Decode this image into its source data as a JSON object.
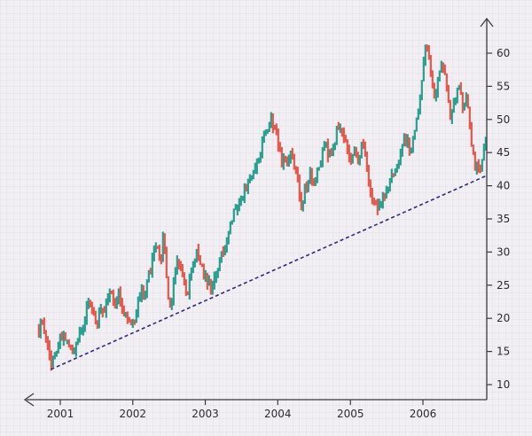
{
  "chart_data": {
    "type": "ohlc",
    "title": "",
    "xlabel": "",
    "ylabel": "",
    "x_ticks": [
      "2001",
      "2002",
      "2003",
      "2004",
      "2005",
      "2006"
    ],
    "y_ticks": [
      10,
      15,
      20,
      25,
      30,
      35,
      40,
      45,
      50,
      55,
      60
    ],
    "x_range": [
      "2000-09-01",
      "2006-12-15"
    ],
    "y_range": [
      8,
      64
    ],
    "y_axis_side": "right",
    "x_axis_direction": "reversed (arrow pointing left)",
    "grid": true,
    "colors": {
      "up": "#2a9d8f",
      "down": "#e4574b",
      "trendline": "#2d2c6e",
      "axis": "#3a3a44",
      "grid": "#dcdae2",
      "background": "#f1eff3"
    },
    "price_path": [
      [
        "2000-09-15",
        18.5
      ],
      [
        "2000-10-05",
        19.5
      ],
      [
        "2000-10-25",
        16.0
      ],
      [
        "2000-11-15",
        13.5
      ],
      [
        "2000-12-05",
        14.0
      ],
      [
        "2001-01-01",
        17.0
      ],
      [
        "2001-01-20",
        17.5
      ],
      [
        "2001-02-15",
        15.0
      ],
      [
        "2001-03-05",
        14.5
      ],
      [
        "2001-04-01",
        17.0
      ],
      [
        "2001-05-01",
        18.0
      ],
      [
        "2001-05-20",
        23.5
      ],
      [
        "2001-06-10",
        22.0
      ],
      [
        "2001-07-01",
        19.5
      ],
      [
        "2001-07-20",
        21.0
      ],
      [
        "2001-08-15",
        21.5
      ],
      [
        "2001-09-10",
        24.5
      ],
      [
        "2001-10-01",
        21.0
      ],
      [
        "2001-10-20",
        24.5
      ],
      [
        "2001-11-10",
        21.5
      ],
      [
        "2001-12-01",
        20.0
      ],
      [
        "2002-01-01",
        19.0
      ],
      [
        "2002-01-20",
        21.0
      ],
      [
        "2002-02-10",
        24.5
      ],
      [
        "2002-03-01",
        23.0
      ],
      [
        "2002-03-20",
        26.0
      ],
      [
        "2002-04-10",
        29.0
      ],
      [
        "2002-05-01",
        31.0
      ],
      [
        "2002-05-20",
        28.0
      ],
      [
        "2002-06-05",
        32.5
      ],
      [
        "2002-06-20",
        26.0
      ],
      [
        "2002-07-10",
        21.0
      ],
      [
        "2002-08-01",
        27.5
      ],
      [
        "2002-08-20",
        29.0
      ],
      [
        "2002-09-10",
        26.0
      ],
      [
        "2002-10-01",
        23.0
      ],
      [
        "2002-10-25",
        28.0
      ],
      [
        "2002-11-15",
        30.0
      ],
      [
        "2002-12-10",
        28.5
      ],
      [
        "2003-01-01",
        26.0
      ],
      [
        "2003-02-01",
        24.5
      ],
      [
        "2003-03-01",
        27.0
      ],
      [
        "2003-03-25",
        30.0
      ],
      [
        "2003-04-15",
        31.0
      ],
      [
        "2003-05-10",
        35.0
      ],
      [
        "2003-06-01",
        36.0
      ],
      [
        "2003-07-01",
        38.5
      ],
      [
        "2003-08-01",
        40.0
      ],
      [
        "2003-09-01",
        42.0
      ],
      [
        "2003-10-01",
        45.0
      ],
      [
        "2003-11-01",
        48.0
      ],
      [
        "2003-12-01",
        50.0
      ],
      [
        "2004-01-01",
        47.0
      ],
      [
        "2004-01-20",
        44.0
      ],
      [
        "2004-02-10",
        43.5
      ],
      [
        "2004-03-05",
        45.0
      ],
      [
        "2004-03-25",
        42.0
      ],
      [
        "2004-04-15",
        40.0
      ],
      [
        "2004-05-01",
        37.0
      ],
      [
        "2004-05-20",
        39.5
      ],
      [
        "2004-06-10",
        42.0
      ],
      [
        "2004-07-01",
        40.0
      ],
      [
        "2004-08-01",
        44.0
      ],
      [
        "2004-08-25",
        46.0
      ],
      [
        "2004-09-20",
        44.5
      ],
      [
        "2004-10-15",
        47.0
      ],
      [
        "2004-11-05",
        49.5
      ],
      [
        "2004-12-01",
        47.0
      ],
      [
        "2005-01-01",
        44.0
      ],
      [
        "2005-01-20",
        45.0
      ],
      [
        "2005-02-10",
        43.0
      ],
      [
        "2005-03-01",
        47.0
      ],
      [
        "2005-03-20",
        44.0
      ],
      [
        "2005-04-10",
        40.0
      ],
      [
        "2005-05-01",
        37.0
      ],
      [
        "2005-05-20",
        36.5
      ],
      [
        "2005-06-10",
        38.0
      ],
      [
        "2005-07-01",
        39.0
      ],
      [
        "2005-07-20",
        40.5
      ],
      [
        "2005-08-10",
        42.5
      ],
      [
        "2005-09-01",
        43.0
      ],
      [
        "2005-09-20",
        46.5
      ],
      [
        "2005-10-10",
        47.0
      ],
      [
        "2005-11-01",
        45.0
      ],
      [
        "2005-11-20",
        48.0
      ],
      [
        "2005-12-10",
        52.0
      ],
      [
        "2006-01-01",
        58.0
      ],
      [
        "2006-01-20",
        62.0
      ],
      [
        "2006-02-10",
        57.0
      ],
      [
        "2006-03-01",
        53.0
      ],
      [
        "2006-03-20",
        56.0
      ],
      [
        "2006-04-10",
        59.0
      ],
      [
        "2006-05-01",
        55.0
      ],
      [
        "2006-05-20",
        50.0
      ],
      [
        "2006-06-10",
        53.5
      ],
      [
        "2006-07-01",
        55.0
      ],
      [
        "2006-07-20",
        52.0
      ],
      [
        "2006-08-10",
        53.0
      ],
      [
        "2006-09-01",
        47.0
      ],
      [
        "2006-09-20",
        43.0
      ],
      [
        "2006-10-10",
        42.0
      ],
      [
        "2006-11-01",
        44.5
      ],
      [
        "2006-11-20",
        47.0
      ]
    ],
    "trendline": {
      "style": "dashed",
      "start": [
        "2000-11-15",
        12.3
      ],
      "end": [
        "2006-11-15",
        41.5
      ]
    }
  }
}
